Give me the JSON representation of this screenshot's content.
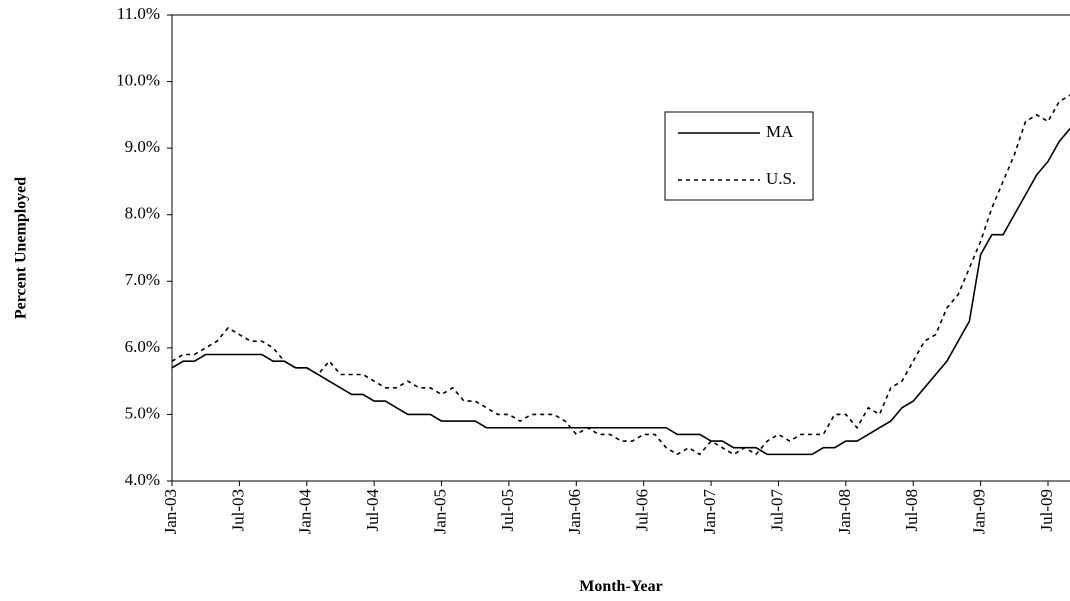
{
  "chart_data": {
    "type": "line",
    "y_label": "Percent Unemployed",
    "x_label": "Month-Year",
    "categories": [
      "Jan-03",
      null,
      null,
      null,
      null,
      null,
      "Jul-03",
      null,
      null,
      null,
      null,
      null,
      "Jan-04",
      null,
      null,
      null,
      null,
      null,
      "Jul-04",
      null,
      null,
      null,
      null,
      null,
      "Jan-05",
      null,
      null,
      null,
      null,
      null,
      "Jul-05",
      null,
      null,
      null,
      null,
      null,
      "Jan-06",
      null,
      null,
      null,
      null,
      null,
      "Jul-06",
      null,
      null,
      null,
      null,
      null,
      "Jan-07",
      null,
      null,
      null,
      null,
      null,
      "Jul-07",
      null,
      null,
      null,
      null,
      null,
      "Jan-08",
      null,
      null,
      null,
      null,
      null,
      "Jul-08",
      null,
      null,
      null,
      null,
      null,
      "Jan-09",
      null,
      null,
      null,
      null,
      null,
      "Jul-09",
      null,
      null
    ],
    "series": [
      {
        "name": "MA",
        "color": "#000000",
        "line_style": "solid",
        "values": [
          5.7,
          5.8,
          5.8,
          5.9,
          5.9,
          5.9,
          5.9,
          5.9,
          5.9,
          5.8,
          5.8,
          5.7,
          5.7,
          5.6,
          5.5,
          5.4,
          5.3,
          5.3,
          5.2,
          5.2,
          5.1,
          5.0,
          5.0,
          5.0,
          4.9,
          4.9,
          4.9,
          4.9,
          4.8,
          4.8,
          4.8,
          4.8,
          4.8,
          4.8,
          4.8,
          4.8,
          4.8,
          4.8,
          4.8,
          4.8,
          4.8,
          4.8,
          4.8,
          4.8,
          4.8,
          4.7,
          4.7,
          4.7,
          4.6,
          4.6,
          4.5,
          4.5,
          4.5,
          4.4,
          4.4,
          4.4,
          4.4,
          4.4,
          4.5,
          4.5,
          4.6,
          4.6,
          4.7,
          4.8,
          4.9,
          5.1,
          5.2,
          5.4,
          5.6,
          5.8,
          6.1,
          6.4,
          7.4,
          7.7,
          7.7,
          8.0,
          8.3,
          8.6,
          8.8,
          9.1,
          9.3
        ]
      },
      {
        "name": "U.S.",
        "color": "#000000",
        "line_style": "dotted",
        "values": [
          5.8,
          5.9,
          5.9,
          6.0,
          6.1,
          6.3,
          6.2,
          6.1,
          6.1,
          6.0,
          5.8,
          5.7,
          5.7,
          5.6,
          5.8,
          5.6,
          5.6,
          5.6,
          5.5,
          5.4,
          5.4,
          5.5,
          5.4,
          5.4,
          5.3,
          5.4,
          5.2,
          5.2,
          5.1,
          5.0,
          5.0,
          4.9,
          5.0,
          5.0,
          5.0,
          4.9,
          4.7,
          4.8,
          4.7,
          4.7,
          4.6,
          4.6,
          4.7,
          4.7,
          4.5,
          4.4,
          4.5,
          4.4,
          4.6,
          4.5,
          4.4,
          4.5,
          4.4,
          4.6,
          4.7,
          4.6,
          4.7,
          4.7,
          4.7,
          5.0,
          5.0,
          4.8,
          5.1,
          5.0,
          5.4,
          5.5,
          5.8,
          6.1,
          6.2,
          6.6,
          6.8,
          7.2,
          7.6,
          8.1,
          8.5,
          8.9,
          9.4,
          9.5,
          9.4,
          9.7,
          9.8
        ]
      }
    ],
    "ylim": [
      4,
      11
    ],
    "yticks": [
      {
        "value": 4,
        "label": "4.0%"
      },
      {
        "value": 5,
        "label": "5.0%"
      },
      {
        "value": 6,
        "label": "6.0%"
      },
      {
        "value": 7,
        "label": "7.0%"
      },
      {
        "value": 8,
        "label": "8.0%"
      },
      {
        "value": 9,
        "label": "9.0%"
      },
      {
        "value": 10,
        "label": "10.0%"
      },
      {
        "value": 11,
        "label": "11.0%"
      }
    ],
    "grid": false,
    "legend": "upper-right"
  }
}
